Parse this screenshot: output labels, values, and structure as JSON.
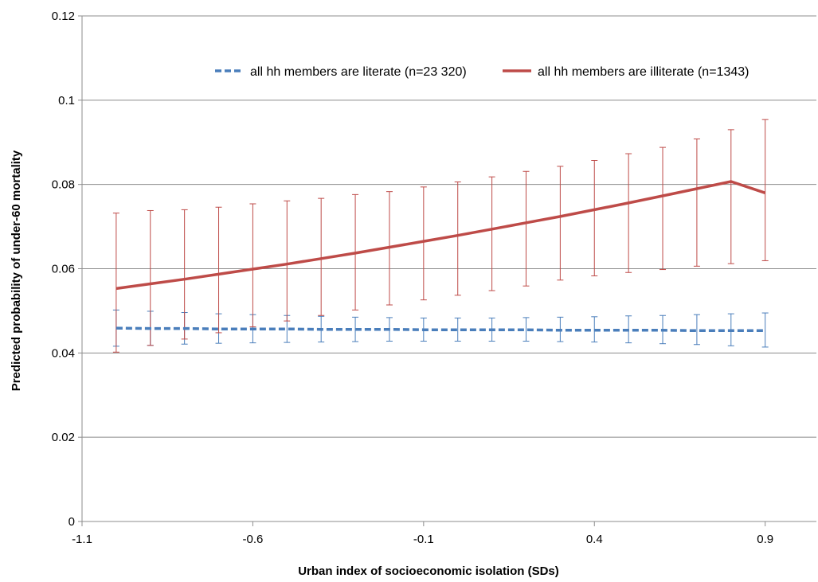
{
  "chart_data": {
    "type": "line",
    "title": "",
    "xlabel": "Urban index of socioeconomic isolation (SDs)",
    "ylabel": "Predicted probability of under-60 mortality",
    "xlim": [
      -1.1,
      1.05
    ],
    "ylim": [
      0,
      0.12
    ],
    "x_ticks": [
      -1.1,
      -0.6,
      -0.1,
      0.4,
      0.9
    ],
    "x_tick_labels": [
      "-1.1",
      "-0.6",
      "-0.1",
      "0.4",
      "0.9"
    ],
    "y_ticks": [
      0,
      0.02,
      0.04,
      0.06,
      0.08,
      0.1,
      0.12
    ],
    "y_tick_labels": [
      "0",
      "0.02",
      "0.04",
      "0.06",
      "0.08",
      "0.1",
      "0.12"
    ],
    "grid": "horizontal",
    "legend_position": "top-right",
    "x": [
      -1.0,
      -0.9,
      -0.8,
      -0.7,
      -0.6,
      -0.5,
      -0.4,
      -0.3,
      -0.2,
      -0.1,
      0.0,
      0.1,
      0.2,
      0.3,
      0.4,
      0.5,
      0.6,
      0.7,
      0.8,
      0.9
    ],
    "series": [
      {
        "name": "all hh members are literate (n=23 320)",
        "color": "#4a7ebb",
        "line_style": "dashed",
        "values": [
          0.0459,
          0.0458,
          0.0458,
          0.0457,
          0.0457,
          0.0457,
          0.0456,
          0.0456,
          0.0456,
          0.0455,
          0.0455,
          0.0455,
          0.0455,
          0.0454,
          0.0454,
          0.0454,
          0.0454,
          0.0453,
          0.0453,
          0.0453
        ],
        "lower": [
          0.0416,
          0.0418,
          0.0421,
          0.0423,
          0.0424,
          0.0425,
          0.0426,
          0.0427,
          0.0428,
          0.0428,
          0.0428,
          0.0428,
          0.0428,
          0.0427,
          0.0426,
          0.0424,
          0.0422,
          0.042,
          0.0417,
          0.0414
        ],
        "upper": [
          0.0502,
          0.0499,
          0.0496,
          0.0493,
          0.0491,
          0.0489,
          0.0487,
          0.0485,
          0.0484,
          0.0483,
          0.0483,
          0.0483,
          0.0484,
          0.0485,
          0.0486,
          0.0488,
          0.0489,
          0.0491,
          0.0493,
          0.0495
        ]
      },
      {
        "name": "all hh members are illiterate (n=1343)",
        "color": "#be4b48",
        "line_style": "solid",
        "values": [
          0.0553,
          0.0564,
          0.0575,
          0.0587,
          0.0599,
          0.0611,
          0.0624,
          0.0637,
          0.0651,
          0.0665,
          0.0679,
          0.0694,
          0.0709,
          0.0724,
          0.074,
          0.0756,
          0.0773,
          0.079,
          0.0807,
          0.078
        ],
        "lower": [
          0.0402,
          0.0418,
          0.0433,
          0.0448,
          0.0462,
          0.0476,
          0.0489,
          0.0502,
          0.0514,
          0.0526,
          0.0537,
          0.0548,
          0.0559,
          0.0573,
          0.0583,
          0.0591,
          0.0598,
          0.0606,
          0.0612,
          0.0619
        ],
        "upper": [
          0.0732,
          0.0738,
          0.074,
          0.0746,
          0.0754,
          0.0761,
          0.0767,
          0.0776,
          0.0783,
          0.0794,
          0.0806,
          0.0818,
          0.0831,
          0.0843,
          0.0857,
          0.0873,
          0.0888,
          0.0908,
          0.093,
          0.0954
        ]
      }
    ]
  }
}
